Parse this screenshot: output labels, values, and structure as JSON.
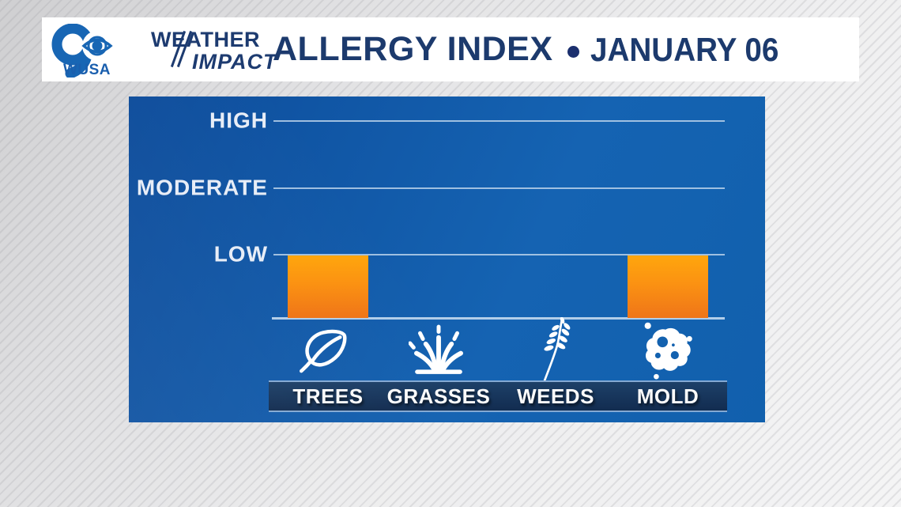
{
  "header": {
    "logo": {
      "station": "WUSA",
      "channel": "9",
      "eye_icon": "cbs-eye-icon"
    },
    "brand": {
      "line1": "WEATHER",
      "line2": "IMPACT"
    },
    "title": "ALLERGY INDEX",
    "separator": "•",
    "date": "JANUARY 06"
  },
  "chart_data": {
    "type": "bar",
    "title": "ALLERGY INDEX",
    "subtitle": "JANUARY 06",
    "levels": [
      "HIGH",
      "MODERATE",
      "LOW"
    ],
    "level_scale": {
      "LOW": 1,
      "MODERATE": 2,
      "HIGH": 3
    },
    "categories": [
      "TREES",
      "GRASSES",
      "WEEDS",
      "MOLD"
    ],
    "category_icons": [
      "leaf-icon",
      "grass-icon",
      "weed-sprig-icon",
      "mold-spore-icon"
    ],
    "values": [
      1,
      0,
      0,
      1
    ],
    "value_labels": [
      "LOW",
      null,
      null,
      "LOW"
    ],
    "ylim": [
      0,
      3.6
    ],
    "grid": true,
    "legend": false
  },
  "colors": {
    "navy_text": "#1c3a6d",
    "logo_blue": "#1866b4",
    "panel_blue_dark": "#0d4c9b",
    "panel_blue_light": "#1563b2",
    "gridline": "#b9d1ea",
    "level_label": "#e7edf7",
    "bar_orange_top": "#ffa60d",
    "bar_orange_bottom": "#ef7519",
    "category_bar_bg": "#16365f",
    "category_bar_border": "#84a9d3"
  }
}
